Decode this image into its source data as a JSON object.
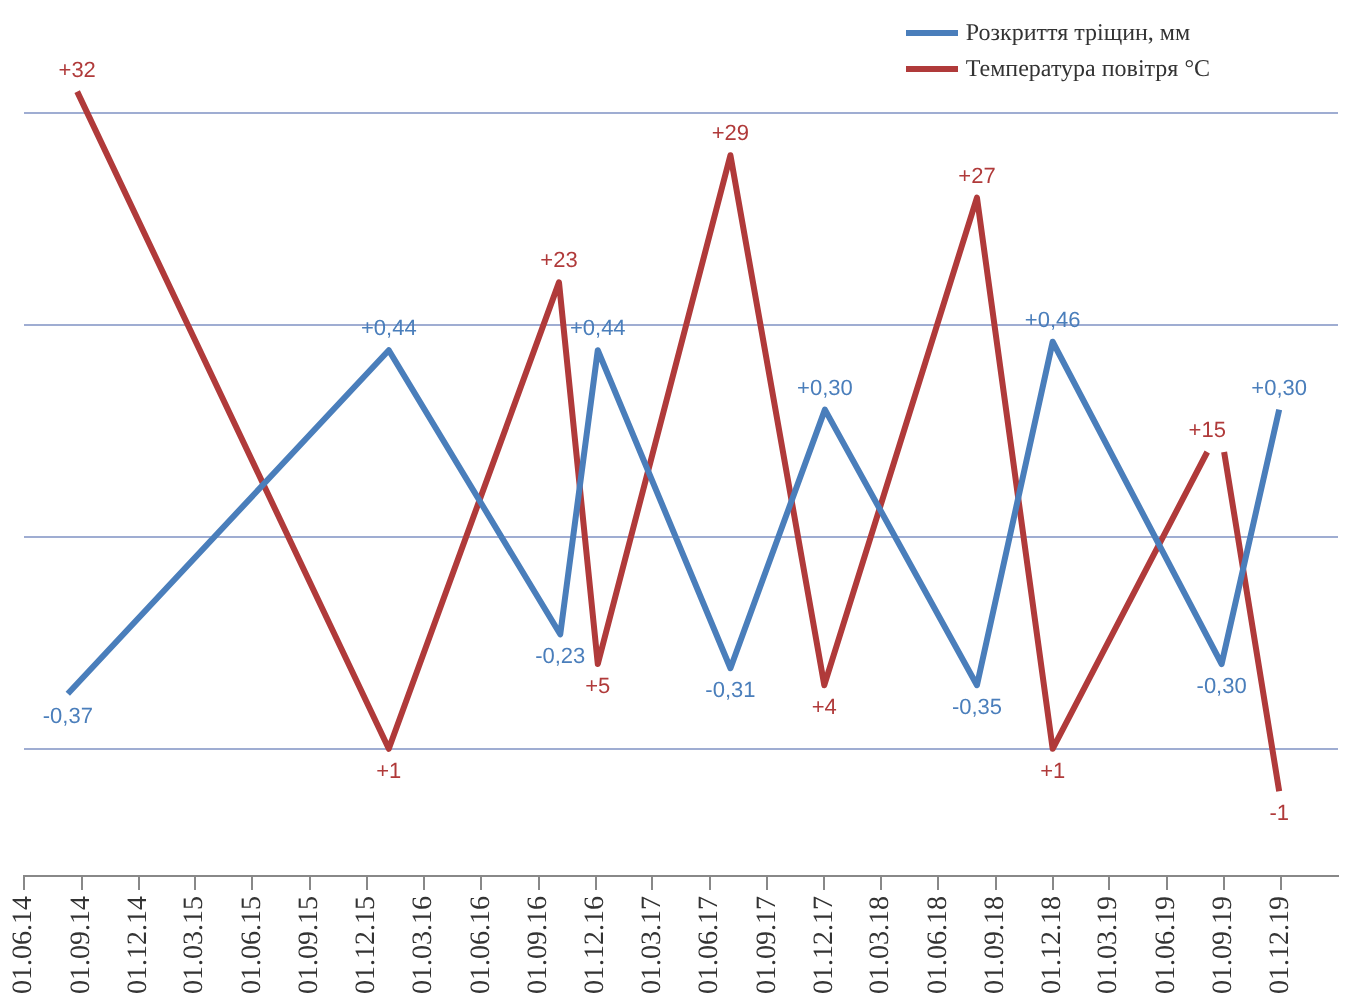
{
  "chart_data": {
    "type": "line",
    "legend": "top right",
    "marker": "none",
    "line_style": "solid",
    "tick_labels": "x",
    "xlim": [
      "2014-06-01",
      "2020-03-01"
    ],
    "xticks": [
      {
        "value": "2014-06-01",
        "label": "01.06.14"
      },
      {
        "value": "2014-09-01",
        "label": "01.09.14"
      },
      {
        "value": "2014-12-01",
        "label": "01.12.14"
      },
      {
        "value": "2015-03-01",
        "label": "01.03.15"
      },
      {
        "value": "2015-06-01",
        "label": "01.06.15"
      },
      {
        "value": "2015-09-01",
        "label": "01.09.15"
      },
      {
        "value": "2015-12-01",
        "label": "01.12.15"
      },
      {
        "value": "2016-03-01",
        "label": "01.03.16"
      },
      {
        "value": "2016-06-01",
        "label": "01.06.16"
      },
      {
        "value": "2016-09-01",
        "label": "01.09.16"
      },
      {
        "value": "2016-12-01",
        "label": "01.12.16"
      },
      {
        "value": "2017-03-01",
        "label": "01.03.17"
      },
      {
        "value": "2017-06-01",
        "label": "01.06.17"
      },
      {
        "value": "2017-09-01",
        "label": "01.09.17"
      },
      {
        "value": "2017-12-01",
        "label": "01.12.17"
      },
      {
        "value": "2018-03-01",
        "label": "01.03.18"
      },
      {
        "value": "2018-06-01",
        "label": "01.06.18"
      },
      {
        "value": "2018-09-01",
        "label": "01.09.18"
      },
      {
        "value": "2018-12-01",
        "label": "01.12.18"
      },
      {
        "value": "2019-03-01",
        "label": "01.03.19"
      },
      {
        "value": "2019-06-01",
        "label": "01.06.19"
      },
      {
        "value": "2019-09-01",
        "label": "01.09.19"
      },
      {
        "value": "2019-12-01",
        "label": "01.12.19"
      }
    ],
    "ref_lines": [
      {
        "axis": "y",
        "value": -0.5,
        "color": "#9fadd2"
      },
      {
        "axis": "y",
        "value": 0,
        "color": "#9fadd2"
      },
      {
        "axis": "y",
        "value": 0.5,
        "color": "#9fadd2"
      },
      {
        "axis": "y",
        "value": 1,
        "color": "#9fadd2"
      }
    ],
    "series": [
      {
        "name": "Розкриття тріщин, мм",
        "color": "#4a7ebb",
        "x": [
          "2014-08-10",
          "2016-01-05",
          "2016-10-05",
          "2016-12-04",
          "2017-07-04",
          "2017-12-02",
          "2018-08-02",
          "2018-12-01",
          "2019-08-28",
          "2019-11-28"
        ],
        "values": [
          -0.37,
          0.44,
          -0.23,
          0.44,
          -0.31,
          0.3,
          -0.35,
          0.46,
          -0.3,
          0.3
        ],
        "value_labels": [
          "-0,37",
          "+0,44",
          "-0,23",
          "+0,44",
          "-0,31",
          "+0,30",
          "-0,35",
          "+0,46",
          "-0,30",
          "+0,30"
        ]
      },
      {
        "name": "Температура повітря  °C",
        "color": "#b03a3a",
        "axis": "y2",
        "x": [
          "2014-08-25",
          "2016-01-05",
          "2016-10-03",
          "2016-12-04",
          "2017-07-04",
          "2017-12-01",
          "2018-08-02",
          "2018-12-01",
          "2019-08-05",
          "2019-08-18",
          "2019-09-01",
          "2019-11-28"
        ],
        "values": [
          32,
          1,
          23,
          5,
          29,
          4,
          27,
          1,
          15,
          null,
          15,
          -1
        ],
        "value_labels": [
          "+32",
          "+1",
          "+23",
          "+5",
          "+29",
          "+4",
          "+27",
          "+1",
          "+15",
          null,
          null,
          "-1"
        ]
      }
    ]
  }
}
